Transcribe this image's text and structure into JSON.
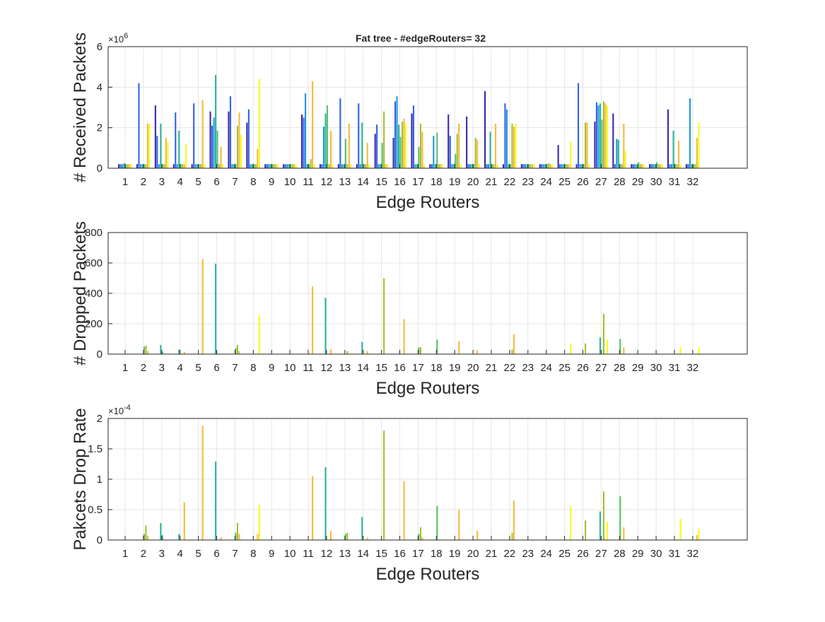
{
  "figure": {
    "title": "Fat tree - #edgeRouters= 32"
  },
  "chart_data": [
    {
      "type": "bar",
      "title": "Fat tree - #edgeRouters= 32",
      "xlabel": "Edge Routers",
      "ylabel": "# Received Packets",
      "exponent_label": "×10^6",
      "ylim": [
        0,
        6
      ],
      "yticks": [
        0,
        2,
        4,
        6
      ],
      "scale": 1000000,
      "grid": true,
      "categories": [
        "1",
        "2",
        "3",
        "4",
        "5",
        "6",
        "7",
        "8",
        "9",
        "10",
        "11",
        "12",
        "13",
        "14",
        "15",
        "16",
        "17",
        "18",
        "19",
        "20",
        "21",
        "22",
        "23",
        "24",
        "25",
        "26",
        "27",
        "28",
        "29",
        "30",
        "31",
        "32"
      ],
      "colors": [
        "#3e26a8",
        "#2f64e9",
        "#1e97e2",
        "#2cb6a0",
        "#59c365",
        "#a8be33",
        "#f4bb3b",
        "#f9fb15"
      ],
      "values": [
        [
          0.2,
          0.2,
          0.2,
          0.25,
          0.2,
          0.2,
          0.2,
          0.2
        ],
        [
          0.2,
          4.2,
          0.2,
          0.2,
          0.2,
          0.2,
          2.2,
          2.2
        ],
        [
          3.1,
          1.6,
          0.2,
          2.2,
          0.2,
          0.2,
          1.5,
          1.3
        ],
        [
          0.2,
          2.75,
          0.2,
          1.85,
          0.2,
          0.2,
          0.2,
          1.2
        ],
        [
          0.2,
          3.2,
          0.2,
          0.2,
          0.2,
          0.2,
          3.35,
          0.2
        ],
        [
          2.8,
          2.1,
          2.5,
          4.6,
          1.85,
          0.2,
          1.05,
          0.2
        ],
        [
          2.8,
          3.55,
          0.2,
          0.2,
          0.2,
          2.1,
          2.75,
          1.65
        ],
        [
          2.25,
          2.9,
          0.2,
          0.2,
          0.2,
          0.2,
          0.95,
          4.4
        ],
        [
          0.2,
          0.2,
          0.2,
          0.2,
          0.2,
          0.2,
          0.2,
          0.2
        ],
        [
          0.2,
          0.2,
          0.2,
          0.2,
          0.2,
          0.2,
          0.2,
          0.2
        ],
        [
          2.65,
          2.5,
          3.7,
          0.2,
          0.2,
          0.45,
          4.3,
          0.2
        ],
        [
          0.2,
          0.2,
          2.05,
          2.7,
          3.1,
          0.2,
          1.85,
          0.2
        ],
        [
          0.2,
          3.45,
          0.2,
          0.2,
          1.45,
          0.2,
          2.2,
          0.2
        ],
        [
          0.2,
          3.2,
          0.2,
          2.25,
          0.2,
          0.2,
          1.25,
          0.2
        ],
        [
          1.7,
          2.15,
          0.2,
          0.2,
          1.25,
          2.8,
          0.2,
          0.2
        ],
        [
          1.5,
          3.3,
          3.55,
          2.15,
          1.55,
          2.3,
          2.45,
          2.2
        ],
        [
          2.7,
          3.1,
          0.2,
          0.2,
          1.05,
          2.2,
          1.8,
          0.2
        ],
        [
          0.2,
          0.2,
          1.6,
          0.2,
          1.75,
          0.2,
          0.2,
          0.2
        ],
        [
          2.65,
          1.6,
          0.2,
          0.2,
          0.7,
          1.7,
          2.2,
          0.2
        ],
        [
          2.55,
          0.2,
          0.2,
          0.2,
          0.2,
          1.5,
          1.4,
          0.2
        ],
        [
          3.8,
          0.2,
          0.2,
          1.8,
          0.2,
          0.2,
          2.2,
          0.2
        ],
        [
          0.2,
          3.2,
          2.9,
          0.2,
          0.2,
          2.2,
          2.05,
          2.2
        ],
        [
          0.2,
          0.2,
          0.2,
          0.2,
          0.2,
          0.2,
          0.2,
          0.2
        ],
        [
          0.2,
          0.2,
          0.2,
          0.2,
          0.2,
          0.25,
          0.2,
          0.2
        ],
        [
          1.15,
          0.2,
          0.2,
          0.2,
          0.2,
          0.2,
          0.2,
          1.3
        ],
        [
          0.2,
          4.2,
          0.2,
          0.2,
          0.2,
          2.25,
          2.25,
          0.2
        ],
        [
          2.3,
          3.25,
          3.1,
          3.2,
          2.4,
          3.3,
          3.2,
          3.1
        ],
        [
          2.7,
          0.2,
          1.45,
          1.4,
          0.2,
          0.2,
          2.2,
          0.85
        ],
        [
          0.2,
          0.2,
          0.2,
          0.2,
          0.3,
          0.2,
          0.2,
          0.2
        ],
        [
          0.2,
          0.2,
          0.2,
          0.2,
          0.3,
          0.2,
          0.2,
          0.2
        ],
        [
          2.9,
          0.2,
          0.2,
          1.85,
          0.2,
          0.2,
          1.35,
          0.2
        ],
        [
          0.2,
          0.2,
          3.45,
          0.2,
          0.2,
          0.2,
          1.5,
          2.25
        ]
      ]
    },
    {
      "type": "bar",
      "title": "",
      "xlabel": "Edge Routers",
      "ylabel": "# Dropped Packets",
      "exponent_label": "",
      "ylim": [
        0,
        800
      ],
      "yticks": [
        0,
        200,
        400,
        600,
        800
      ],
      "scale": 1,
      "grid": true,
      "categories": [
        "1",
        "2",
        "3",
        "4",
        "5",
        "6",
        "7",
        "8",
        "9",
        "10",
        "11",
        "12",
        "13",
        "14",
        "15",
        "16",
        "17",
        "18",
        "19",
        "20",
        "21",
        "22",
        "23",
        "24",
        "25",
        "26",
        "27",
        "28",
        "29",
        "30",
        "31",
        "32"
      ],
      "colors": [
        "#3e26a8",
        "#2f64e9",
        "#1e97e2",
        "#2cb6a0",
        "#59c365",
        "#a8be33",
        "#f4bb3b",
        "#f9fb15"
      ],
      "values": [
        [
          0,
          0,
          0,
          0,
          0,
          0,
          0,
          0
        ],
        [
          0,
          0,
          0,
          0,
          50,
          55,
          20,
          0
        ],
        [
          0,
          0,
          0,
          60,
          15,
          0,
          0,
          0
        ],
        [
          0,
          0,
          0,
          30,
          0,
          0,
          15,
          0
        ],
        [
          0,
          0,
          0,
          0,
          0,
          0,
          625,
          0
        ],
        [
          0,
          0,
          0,
          595,
          0,
          0,
          0,
          0
        ],
        [
          0,
          0,
          0,
          0,
          40,
          60,
          20,
          0
        ],
        [
          0,
          0,
          0,
          0,
          0,
          0,
          0,
          255
        ],
        [
          0,
          0,
          0,
          0,
          0,
          0,
          0,
          0
        ],
        [
          0,
          0,
          0,
          0,
          0,
          0,
          0,
          0
        ],
        [
          0,
          0,
          0,
          0,
          0,
          0,
          445,
          0
        ],
        [
          0,
          0,
          0,
          370,
          0,
          0,
          30,
          0
        ],
        [
          0,
          0,
          0,
          0,
          0,
          20,
          0,
          0
        ],
        [
          0,
          0,
          0,
          80,
          0,
          0,
          20,
          0
        ],
        [
          0,
          0,
          0,
          0,
          0,
          500,
          0,
          0
        ],
        [
          0,
          0,
          0,
          0,
          0,
          0,
          230,
          0
        ],
        [
          0,
          0,
          0,
          0,
          45,
          45,
          0,
          0
        ],
        [
          0,
          0,
          0,
          0,
          95,
          0,
          0,
          0
        ],
        [
          0,
          0,
          0,
          0,
          0,
          0,
          85,
          0
        ],
        [
          0,
          0,
          0,
          0,
          0,
          0,
          25,
          0
        ],
        [
          0,
          0,
          0,
          0,
          0,
          0,
          0,
          0
        ],
        [
          0,
          0,
          0,
          0,
          0,
          30,
          130,
          0
        ],
        [
          0,
          0,
          0,
          0,
          0,
          0,
          0,
          0
        ],
        [
          0,
          0,
          0,
          0,
          0,
          0,
          0,
          0
        ],
        [
          0,
          0,
          0,
          0,
          0,
          0,
          0,
          70
        ],
        [
          0,
          0,
          0,
          0,
          0,
          70,
          0,
          0
        ],
        [
          0,
          0,
          0,
          110,
          0,
          265,
          0,
          95
        ],
        [
          0,
          0,
          0,
          0,
          100,
          0,
          45,
          0
        ],
        [
          0,
          0,
          0,
          0,
          0,
          0,
          0,
          0
        ],
        [
          0,
          0,
          0,
          0,
          0,
          0,
          0,
          0
        ],
        [
          0,
          0,
          0,
          0,
          0,
          0,
          0,
          45
        ],
        [
          0,
          0,
          0,
          0,
          0,
          0,
          0,
          45
        ]
      ]
    },
    {
      "type": "bar",
      "title": "",
      "xlabel": "Edge Routers",
      "ylabel": "Pakcets Drop Rate",
      "exponent_label": "×10^-4",
      "ylim": [
        0,
        2
      ],
      "yticks": [
        0,
        0.5,
        1,
        1.5,
        2
      ],
      "scale": 0.0001,
      "grid": true,
      "categories": [
        "1",
        "2",
        "3",
        "4",
        "5",
        "6",
        "7",
        "8",
        "9",
        "10",
        "11",
        "12",
        "13",
        "14",
        "15",
        "16",
        "17",
        "18",
        "19",
        "20",
        "21",
        "22",
        "23",
        "24",
        "25",
        "26",
        "27",
        "28",
        "29",
        "30",
        "31",
        "32"
      ],
      "colors": [
        "#3e26a8",
        "#2f64e9",
        "#1e97e2",
        "#2cb6a0",
        "#59c365",
        "#a8be33",
        "#f4bb3b",
        "#f9fb15"
      ],
      "values": [
        [
          0,
          0,
          0,
          0,
          0,
          0,
          0,
          0
        ],
        [
          0,
          0,
          0,
          0,
          0.1,
          0.24,
          0.07,
          0
        ],
        [
          0,
          0,
          0,
          0.28,
          0.08,
          0,
          0,
          0
        ],
        [
          0,
          0,
          0,
          0.1,
          0,
          0,
          0.62,
          0
        ],
        [
          0,
          0,
          0,
          0,
          0,
          0,
          1.88,
          0
        ],
        [
          0,
          0,
          0,
          1.29,
          0,
          0,
          0.05,
          0
        ],
        [
          0,
          0,
          0,
          0,
          0.12,
          0.28,
          0.1,
          0
        ],
        [
          0,
          0,
          0,
          0,
          0,
          0,
          0.1,
          0.58
        ],
        [
          0,
          0,
          0,
          0,
          0,
          0,
          0,
          0
        ],
        [
          0,
          0,
          0,
          0,
          0,
          0,
          0,
          0
        ],
        [
          0,
          0,
          0,
          0,
          0,
          0,
          1.05,
          0
        ],
        [
          0,
          0,
          0,
          1.2,
          0,
          0,
          0.15,
          0
        ],
        [
          0,
          0,
          0,
          0,
          0.1,
          0.12,
          0,
          0
        ],
        [
          0,
          0,
          0,
          0.38,
          0,
          0,
          0.04,
          0
        ],
        [
          0,
          0,
          0,
          0,
          0,
          1.8,
          0,
          0
        ],
        [
          0,
          0,
          0,
          0,
          0,
          0,
          0.97,
          0
        ],
        [
          0,
          0,
          0,
          0,
          0.1,
          0.21,
          0.05,
          0
        ],
        [
          0,
          0,
          0,
          0,
          0.56,
          0,
          0,
          0
        ],
        [
          0,
          0,
          0,
          0,
          0,
          0,
          0.5,
          0
        ],
        [
          0,
          0,
          0,
          0,
          0,
          0,
          0.15,
          0
        ],
        [
          0,
          0,
          0,
          0,
          0,
          0,
          0,
          0
        ],
        [
          0,
          0,
          0,
          0,
          0,
          0.12,
          0.65,
          0
        ],
        [
          0,
          0,
          0,
          0,
          0,
          0,
          0,
          0
        ],
        [
          0,
          0,
          0,
          0,
          0,
          0,
          0,
          0
        ],
        [
          0,
          0,
          0,
          0,
          0,
          0,
          0,
          0.55
        ],
        [
          0,
          0,
          0,
          0,
          0,
          0.32,
          0,
          0
        ],
        [
          0,
          0,
          0,
          0.47,
          0,
          0.8,
          0,
          0.3
        ],
        [
          0,
          0,
          0,
          0,
          0.72,
          0,
          0.21,
          0
        ],
        [
          0,
          0,
          0,
          0,
          0,
          0,
          0,
          0
        ],
        [
          0,
          0,
          0,
          0,
          0,
          0,
          0,
          0
        ],
        [
          0,
          0,
          0,
          0,
          0,
          0,
          0,
          0.35
        ],
        [
          0,
          0,
          0,
          0,
          0,
          0,
          0.08,
          0.19
        ]
      ]
    }
  ]
}
